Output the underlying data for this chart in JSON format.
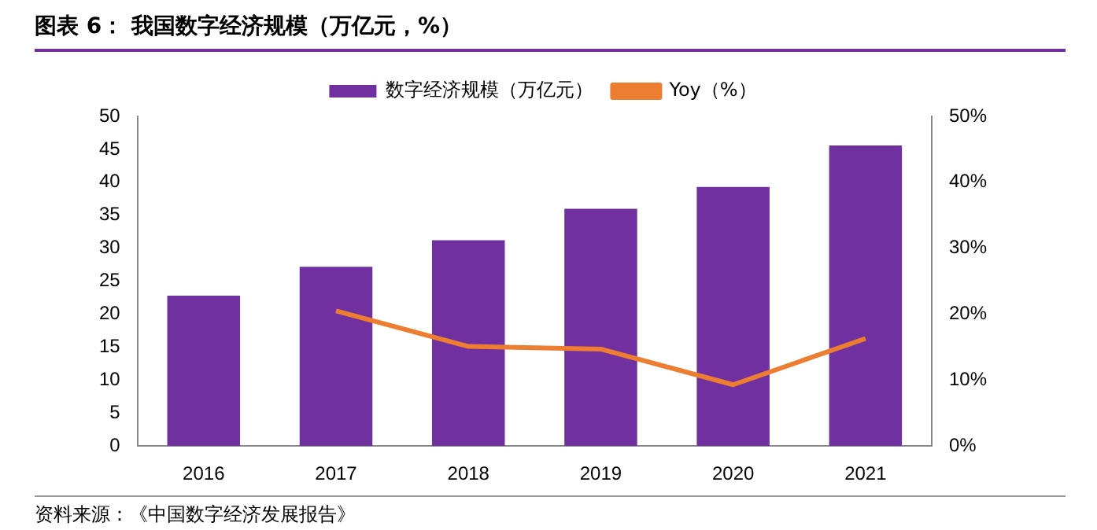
{
  "chart_data": {
    "type": "bar",
    "title": "图表 6：  我国数字经济规模（万亿元，%）",
    "categories": [
      "2016",
      "2017",
      "2018",
      "2019",
      "2020",
      "2021"
    ],
    "series": [
      {
        "name": "数字经济规模（万亿元）",
        "color": "#7030a0",
        "values": [
          22.8,
          27.2,
          31.2,
          36.0,
          39.3,
          45.6
        ]
      },
      {
        "name": "Yoy（%）",
        "type": "line",
        "axis": "y2",
        "color": "#ed7d31",
        "marker": "none",
        "values": [
          null,
          20.5,
          15.1,
          14.7,
          9.3,
          16.3
        ]
      }
    ],
    "ylim": [
      0,
      50
    ],
    "yticks": [
      0,
      5,
      10,
      15,
      20,
      25,
      30,
      35,
      40,
      45,
      50
    ],
    "y2lim": [
      0,
      50
    ],
    "y2ticks": [
      {
        "value": 0,
        "label": "0%"
      },
      {
        "value": 10,
        "label": "10%"
      },
      {
        "value": 20,
        "label": "20%"
      },
      {
        "value": 30,
        "label": "30%"
      },
      {
        "value": 40,
        "label": "40%"
      },
      {
        "value": 50,
        "label": "50%"
      }
    ],
    "grid": false,
    "legend": "top",
    "annotations": [
      "资料来源：《中国数字经济发展报告》"
    ]
  }
}
